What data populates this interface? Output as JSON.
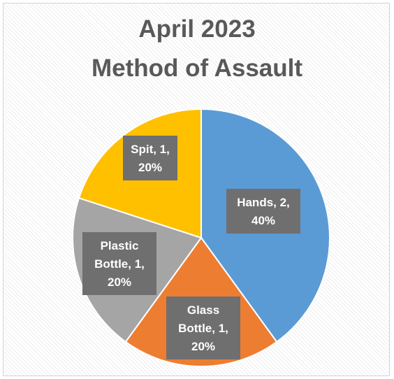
{
  "chart_data": {
    "type": "pie",
    "title_lines": [
      "April 2023",
      "Method of Assault"
    ],
    "slices": [
      {
        "label_lines": [
          "Hands, 2,",
          "40%"
        ],
        "category": "Hands",
        "value": 2,
        "percent": 40,
        "color": "#5b9bd5"
      },
      {
        "label_lines": [
          "Glass",
          "Bottle, 1,",
          "20%"
        ],
        "category": "Glass Bottle",
        "value": 1,
        "percent": 20,
        "color": "#ed7d31"
      },
      {
        "label_lines": [
          "Plastic",
          "Bottle, 1,",
          "20%"
        ],
        "category": "Plastic Bottle",
        "value": 1,
        "percent": 20,
        "color": "#a5a5a5"
      },
      {
        "label_lines": [
          "Spit, 1,",
          "20%"
        ],
        "category": "Spit",
        "value": 1,
        "percent": 20,
        "color": "#ffc000"
      }
    ],
    "label_box_color": "#6f6f6f",
    "slice_border_color": "#ffffff"
  }
}
